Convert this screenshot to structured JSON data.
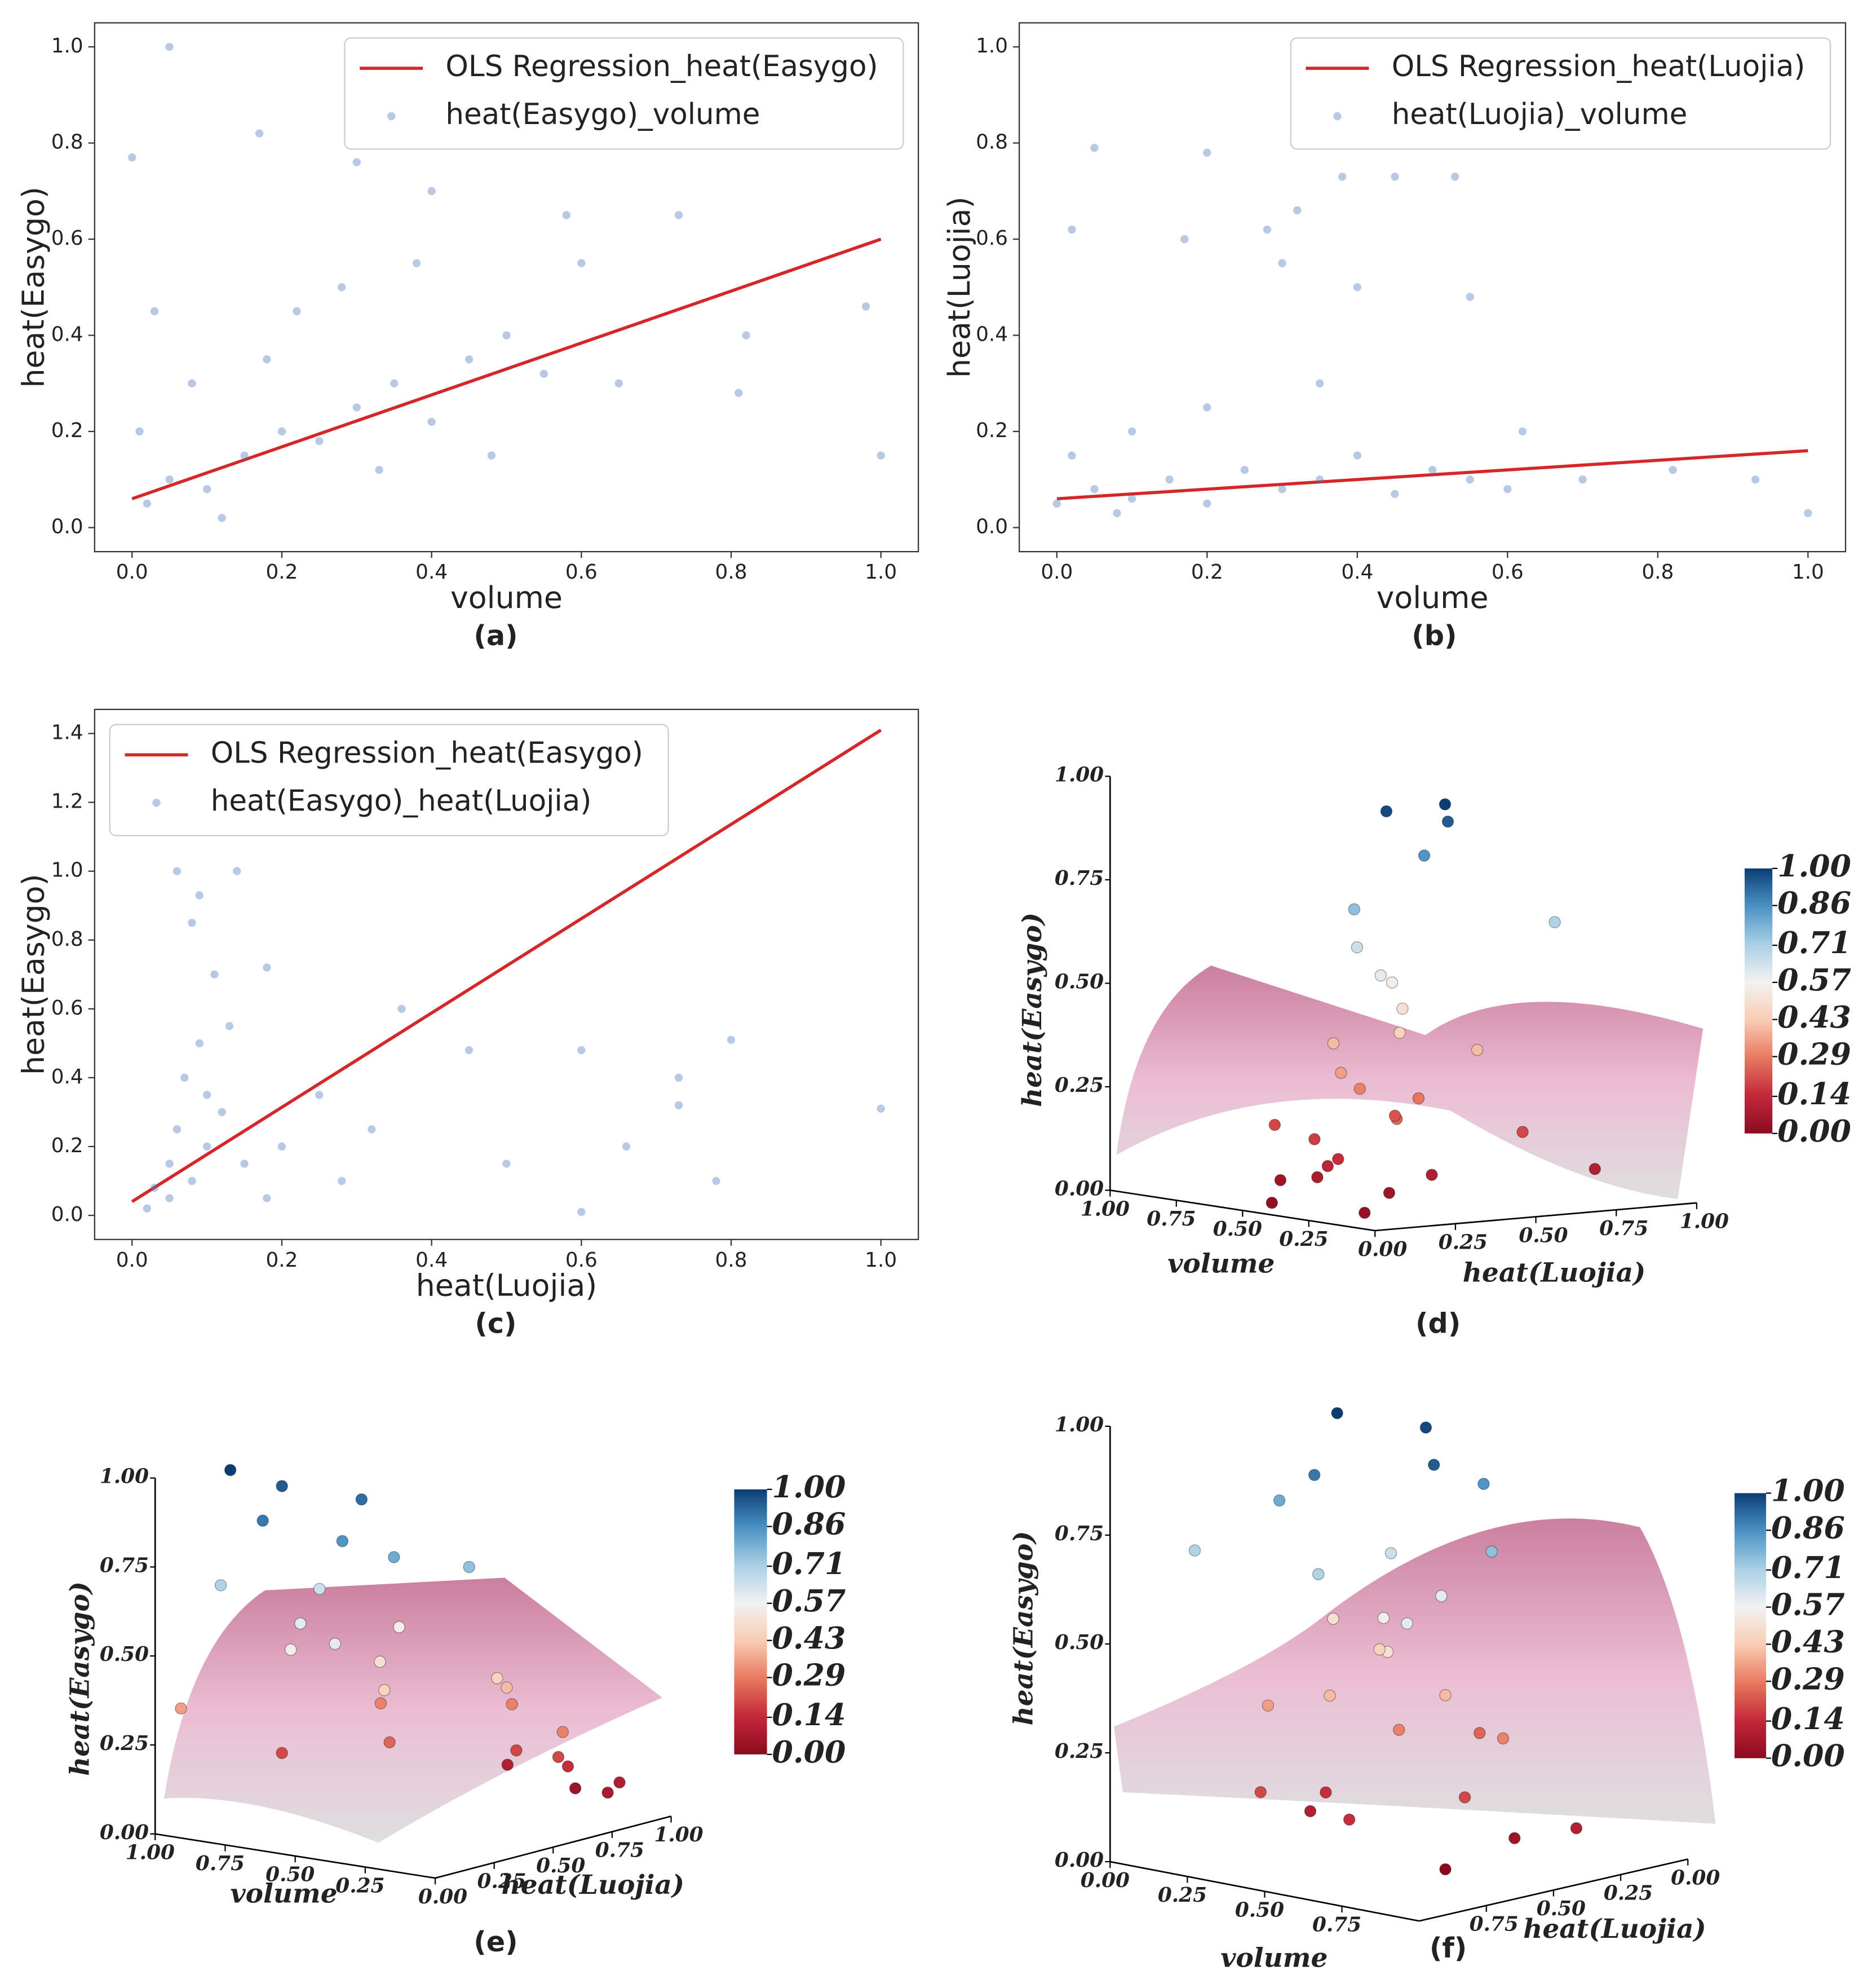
{
  "chart_data": [
    {
      "type": "scatter",
      "caption": "(a)",
      "xlabel": "volume",
      "ylabel": "heat(Easygo)",
      "legend": "upper right",
      "xlim": [
        -0.05,
        1.05
      ],
      "ylim": [
        -0.05,
        1.05
      ],
      "xticks": [
        {
          "value": 0,
          "label": "0.0"
        },
        {
          "value": 0.2,
          "label": "0.2"
        },
        {
          "value": 0.4,
          "label": "0.4"
        },
        {
          "value": 0.6,
          "label": "0.6"
        },
        {
          "value": 0.8,
          "label": "0.8"
        },
        {
          "value": 1,
          "label": "1.0"
        }
      ],
      "yticks": [
        {
          "value": 0,
          "label": "0.0"
        },
        {
          "value": 0.2,
          "label": "0.2"
        },
        {
          "value": 0.4,
          "label": "0.4"
        },
        {
          "value": 0.6,
          "label": "0.6"
        },
        {
          "value": 0.8,
          "label": "0.8"
        },
        {
          "value": 1,
          "label": "1.0"
        }
      ],
      "series": [
        {
          "name": "OLS Regression_heat(Easygo)",
          "kind": "line",
          "color": "#d62728",
          "x": [
            0,
            1
          ],
          "values": [
            0.06,
            0.6
          ]
        },
        {
          "name": "heat(Easygo)_volume",
          "kind": "scatter",
          "color": "#4a78bd",
          "x": [
            0.05,
            0.0,
            0.17,
            0.3,
            0.4,
            0.58,
            0.73,
            0.82,
            0.65,
            0.98,
            1.0,
            0.81,
            0.02,
            0.05,
            0.1,
            0.15,
            0.2,
            0.25,
            0.3,
            0.35,
            0.4,
            0.45,
            0.5,
            0.55,
            0.08,
            0.12,
            0.22,
            0.28,
            0.33,
            0.01,
            0.03,
            0.6,
            0.48,
            0.18,
            0.38
          ],
          "values": [
            1.0,
            0.77,
            0.82,
            0.76,
            0.7,
            0.65,
            0.65,
            0.4,
            0.3,
            0.46,
            0.15,
            0.28,
            0.05,
            0.1,
            0.08,
            0.15,
            0.2,
            0.18,
            0.25,
            0.3,
            0.22,
            0.35,
            0.4,
            0.32,
            0.3,
            0.02,
            0.45,
            0.5,
            0.12,
            0.2,
            0.45,
            0.55,
            0.15,
            0.35,
            0.55
          ]
        }
      ]
    },
    {
      "type": "scatter",
      "caption": "(b)",
      "xlabel": "volume",
      "ylabel": "heat(Luojia)",
      "legend": "upper right",
      "xlim": [
        -0.05,
        1.05
      ],
      "ylim": [
        -0.05,
        1.05
      ],
      "xticks": [
        {
          "value": 0,
          "label": "0.0"
        },
        {
          "value": 0.2,
          "label": "0.2"
        },
        {
          "value": 0.4,
          "label": "0.4"
        },
        {
          "value": 0.6,
          "label": "0.6"
        },
        {
          "value": 0.8,
          "label": "0.8"
        },
        {
          "value": 1,
          "label": "1.0"
        }
      ],
      "yticks": [
        {
          "value": 0,
          "label": "0.0"
        },
        {
          "value": 0.2,
          "label": "0.2"
        },
        {
          "value": 0.4,
          "label": "0.4"
        },
        {
          "value": 0.6,
          "label": "0.6"
        },
        {
          "value": 0.8,
          "label": "0.8"
        },
        {
          "value": 1,
          "label": "1.0"
        }
      ],
      "series": [
        {
          "name": "OLS Regression_heat(Luojia)",
          "kind": "line",
          "color": "#d62728",
          "x": [
            0,
            1
          ],
          "values": [
            0.06,
            0.16
          ]
        },
        {
          "name": "heat(Luojia)_volume",
          "kind": "scatter",
          "color": "#4a78bd",
          "x": [
            0.05,
            0.2,
            0.38,
            0.45,
            0.53,
            0.32,
            0.02,
            0.17,
            0.28,
            0.3,
            0.4,
            0.55,
            0.62,
            0.82,
            0.93,
            1.0,
            0.7,
            0.0,
            0.05,
            0.1,
            0.15,
            0.2,
            0.25,
            0.3,
            0.35,
            0.4,
            0.45,
            0.5,
            0.55,
            0.1,
            0.2,
            0.02,
            0.6,
            0.35,
            0.08
          ],
          "values": [
            0.79,
            0.78,
            0.73,
            0.73,
            0.73,
            0.66,
            0.62,
            0.6,
            0.62,
            0.55,
            0.5,
            0.48,
            0.2,
            0.12,
            0.1,
            0.03,
            0.1,
            0.05,
            0.08,
            0.06,
            0.1,
            0.05,
            0.12,
            0.08,
            0.1,
            0.15,
            0.07,
            0.12,
            0.1,
            0.2,
            0.25,
            0.15,
            0.08,
            0.3,
            0.03
          ]
        }
      ]
    },
    {
      "type": "scatter",
      "caption": "(c)",
      "xlabel": "heat(Luojia)",
      "ylabel": "heat(Easygo)",
      "legend": "upper left",
      "xlim": [
        -0.05,
        1.05
      ],
      "ylim": [
        -0.07,
        1.47
      ],
      "xticks": [
        {
          "value": 0,
          "label": "0.0"
        },
        {
          "value": 0.2,
          "label": "0.2"
        },
        {
          "value": 0.4,
          "label": "0.4"
        },
        {
          "value": 0.6,
          "label": "0.6"
        },
        {
          "value": 0.8,
          "label": "0.8"
        },
        {
          "value": 1,
          "label": "1.0"
        }
      ],
      "yticks": [
        {
          "value": 0,
          "label": "0.0"
        },
        {
          "value": 0.2,
          "label": "0.2"
        },
        {
          "value": 0.4,
          "label": "0.4"
        },
        {
          "value": 0.6,
          "label": "0.6"
        },
        {
          "value": 0.8,
          "label": "0.8"
        },
        {
          "value": 1,
          "label": "1.0"
        },
        {
          "value": 1.2,
          "label": "1.2"
        },
        {
          "value": 1.4,
          "label": "1.4"
        }
      ],
      "series": [
        {
          "name": "OLS Regression_heat(Easygo)",
          "kind": "line",
          "color": "#d62728",
          "x": [
            0,
            1
          ],
          "values": [
            0.04,
            1.41
          ]
        },
        {
          "name": "heat(Easygo)_heat(Luojia)",
          "kind": "scatter",
          "color": "#4a78bd",
          "x": [
            0.06,
            0.14,
            0.09,
            0.08,
            0.11,
            0.18,
            0.36,
            0.45,
            0.6,
            0.66,
            0.73,
            0.73,
            0.8,
            0.78,
            0.6,
            1.0,
            0.28,
            0.5,
            0.02,
            0.05,
            0.05,
            0.08,
            0.1,
            0.12,
            0.07,
            0.09,
            0.1,
            0.15,
            0.2,
            0.25,
            0.06,
            0.13,
            0.03,
            0.18,
            0.32
          ],
          "values": [
            1.0,
            1.0,
            0.93,
            0.85,
            0.7,
            0.72,
            0.6,
            0.48,
            0.48,
            0.2,
            0.4,
            0.32,
            0.51,
            0.1,
            0.01,
            0.31,
            0.1,
            0.15,
            0.02,
            0.05,
            0.15,
            0.1,
            0.2,
            0.3,
            0.4,
            0.5,
            0.35,
            0.15,
            0.2,
            0.35,
            0.25,
            0.55,
            0.08,
            0.05,
            0.25
          ]
        }
      ]
    },
    {
      "type": "scatter3d",
      "caption": "(d)",
      "xlabel": "volume",
      "ylabel": "heat(Luojia)",
      "zlabel": "heat(Easygo)",
      "xticks": [
        {
          "value": 0.25,
          "label": "0.25"
        },
        {
          "value": 0.5,
          "label": "0.50"
        },
        {
          "value": 0.75,
          "label": "0.75"
        },
        {
          "value": 1,
          "label": "1.00"
        }
      ],
      "yticks": [
        {
          "value": 0,
          "label": "0.00"
        },
        {
          "value": 0.25,
          "label": "0.25"
        },
        {
          "value": 0.5,
          "label": "0.50"
        },
        {
          "value": 0.75,
          "label": "0.75"
        },
        {
          "value": 1,
          "label": "1.00"
        }
      ],
      "zticks": [
        {
          "value": 0,
          "label": "0.00"
        },
        {
          "value": 0.25,
          "label": "0.25"
        },
        {
          "value": 0.5,
          "label": "0.50"
        },
        {
          "value": 0.75,
          "label": "0.75"
        },
        {
          "value": 1,
          "label": "1.00"
        }
      ],
      "colorbar_ticks": [
        {
          "value": 0,
          "label": "0.00"
        },
        {
          "value": 0.14,
          "label": "0.14"
        },
        {
          "value": 0.29,
          "label": "0.29"
        },
        {
          "value": 0.43,
          "label": "0.43"
        },
        {
          "value": 0.57,
          "label": "0.57"
        },
        {
          "value": 0.71,
          "label": "0.71"
        },
        {
          "value": 0.86,
          "label": "0.86"
        },
        {
          "value": 1,
          "label": "1.00"
        }
      ],
      "colormap": [
        "#8b0a1f",
        "#c4283a",
        "#e8795f",
        "#f9cdb4",
        "#f2f2f2",
        "#a9cfe5",
        "#4a92c4",
        "#0b3d75"
      ],
      "x": [
        0.1,
        0.2,
        0.15,
        0.3,
        0.05,
        0.2,
        0.25,
        0.1,
        0.3,
        0.2,
        0.15,
        0.4,
        0.1,
        0.25,
        0.3,
        0.2,
        0.1,
        0.35,
        0.5,
        0.2,
        0.3,
        0.15,
        0.4,
        0.25,
        0.1,
        0.6,
        0.05,
        0.02,
        0.45,
        0.35
      ],
      "y": [
        0.3,
        0.2,
        0.35,
        0.4,
        0.6,
        0.1,
        0.15,
        0.1,
        0.3,
        0.25,
        0.2,
        0.2,
        0.4,
        0.1,
        0.2,
        0.3,
        0.15,
        0.35,
        0.1,
        0.05,
        0.1,
        0.3,
        0.15,
        0.25,
        0.05,
        0.2,
        0.5,
        0.7,
        0.05,
        0.1
      ],
      "values": [
        1.0,
        0.98,
        0.95,
        0.85,
        0.7,
        0.75,
        0.65,
        0.6,
        0.55,
        0.5,
        0.45,
        0.4,
        0.4,
        0.35,
        0.3,
        0.28,
        0.25,
        0.22,
        0.2,
        0.15,
        0.12,
        0.1,
        0.08,
        0.05,
        0.03,
        0.05,
        0.2,
        0.1,
        0.02,
        0.18
      ]
    },
    {
      "type": "scatter3d",
      "caption": "(e)",
      "xlabel": "volume",
      "ylabel": "heat(Luojia)",
      "zlabel": "heat(Easygo)",
      "xticks": [
        {
          "value": 0.25,
          "label": "0.25"
        },
        {
          "value": 0.5,
          "label": "0.50"
        },
        {
          "value": 0.75,
          "label": "0.75"
        },
        {
          "value": 1,
          "label": "1.00"
        }
      ],
      "yticks": [
        {
          "value": 0,
          "label": "0.00"
        },
        {
          "value": 0.25,
          "label": "0.25"
        },
        {
          "value": 0.5,
          "label": "0.50"
        },
        {
          "value": 0.75,
          "label": "0.75"
        },
        {
          "value": 1,
          "label": "1.00"
        }
      ],
      "zticks": [
        {
          "value": 0,
          "label": "0.00"
        },
        {
          "value": 0.25,
          "label": "0.25"
        },
        {
          "value": 0.5,
          "label": "0.50"
        },
        {
          "value": 0.75,
          "label": "0.75"
        },
        {
          "value": 1,
          "label": "1.00"
        }
      ],
      "colorbar_ticks": [
        {
          "value": 0,
          "label": "0.00"
        },
        {
          "value": 0.14,
          "label": "0.14"
        },
        {
          "value": 0.29,
          "label": "0.29"
        },
        {
          "value": 0.43,
          "label": "0.43"
        },
        {
          "value": 0.57,
          "label": "0.57"
        },
        {
          "value": 0.71,
          "label": "0.71"
        },
        {
          "value": 0.86,
          "label": "0.86"
        },
        {
          "value": 1,
          "label": "1.00"
        }
      ],
      "colormap": [
        "#8b0a1f",
        "#c4283a",
        "#e8795f",
        "#f9cdb4",
        "#f2f2f2",
        "#a9cfe5",
        "#4a92c4",
        "#0b3d75"
      ],
      "x": [
        0.9,
        0.8,
        0.7,
        0.6,
        0.5,
        0.4,
        0.3,
        0.85,
        0.75,
        0.65,
        0.55,
        0.45,
        0.35,
        0.25,
        0.95,
        0.7,
        0.5,
        0.3,
        0.2,
        0.1,
        0.6,
        0.4,
        0.2,
        0.8,
        0.5,
        0.3,
        0.15,
        0.1,
        0.05,
        0.4
      ],
      "y": [
        0.2,
        0.3,
        0.1,
        0.4,
        0.2,
        0.3,
        0.5,
        0.1,
        0.4,
        0.2,
        0.5,
        0.3,
        0.2,
        0.6,
        0.05,
        0.6,
        0.4,
        0.7,
        0.8,
        0.9,
        0.1,
        0.8,
        0.5,
        0.3,
        0.9,
        0.95,
        0.7,
        0.85,
        0.6,
        0.05
      ],
      "values": [
        1.0,
        0.95,
        0.9,
        0.92,
        0.85,
        0.8,
        0.75,
        0.7,
        0.65,
        0.6,
        0.55,
        0.5,
        0.45,
        0.4,
        0.35,
        0.3,
        0.25,
        0.2,
        0.15,
        0.1,
        0.55,
        0.3,
        0.45,
        0.2,
        0.1,
        0.05,
        0.2,
        0.08,
        0.3,
        0.6
      ]
    },
    {
      "type": "scatter3d",
      "caption": "(f)",
      "xlabel": "volume",
      "ylabel": "heat(Luojia)",
      "zlabel": "heat(Easygo)",
      "xticks": [
        {
          "value": 0,
          "label": "0.00"
        },
        {
          "value": 0.25,
          "label": "0.25"
        },
        {
          "value": 0.5,
          "label": "0.50"
        },
        {
          "value": 0.75,
          "label": "0.75"
        }
      ],
      "yticks": [
        {
          "value": 0,
          "label": "0.00"
        },
        {
          "value": 0.25,
          "label": "0.25"
        },
        {
          "value": 0.5,
          "label": "0.50"
        },
        {
          "value": 0.75,
          "label": "0.75"
        }
      ],
      "zticks": [
        {
          "value": 0,
          "label": "0.00"
        },
        {
          "value": 0.25,
          "label": "0.25"
        },
        {
          "value": 0.5,
          "label": "0.50"
        },
        {
          "value": 0.75,
          "label": "0.75"
        },
        {
          "value": 1,
          "label": "1.00"
        }
      ],
      "colorbar_ticks": [
        {
          "value": 0,
          "label": "0.00"
        },
        {
          "value": 0.14,
          "label": "0.14"
        },
        {
          "value": 0.29,
          "label": "0.29"
        },
        {
          "value": 0.43,
          "label": "0.43"
        },
        {
          "value": 0.57,
          "label": "0.57"
        },
        {
          "value": 0.71,
          "label": "0.71"
        },
        {
          "value": 0.86,
          "label": "0.86"
        },
        {
          "value": 1,
          "label": "1.00"
        }
      ],
      "colormap": [
        "#8b0a1f",
        "#c4283a",
        "#e8795f",
        "#f9cdb4",
        "#f2f2f2",
        "#a9cfe5",
        "#4a92c4",
        "#0b3d75"
      ],
      "x": [
        0.3,
        0.5,
        0.7,
        0.4,
        0.6,
        0.2,
        0.8,
        0.5,
        0.3,
        0.7,
        0.45,
        0.55,
        0.35,
        0.65,
        0.25,
        0.75,
        0.5,
        0.4,
        0.6,
        0.3,
        0.7,
        0.5,
        0.2,
        0.8,
        0.45,
        0.55,
        0.1,
        0.9,
        0.35,
        0.65
      ],
      "y": [
        0.5,
        0.4,
        0.6,
        0.7,
        0.3,
        0.6,
        0.5,
        0.8,
        0.3,
        0.7,
        0.5,
        0.6,
        0.4,
        0.5,
        0.7,
        0.4,
        0.2,
        0.9,
        0.8,
        0.6,
        0.3,
        0.5,
        0.4,
        0.6,
        0.7,
        0.4,
        0.8,
        0.3,
        0.6,
        0.5
      ],
      "values": [
        1.0,
        0.98,
        0.95,
        0.9,
        0.85,
        0.8,
        0.75,
        0.7,
        0.65,
        0.6,
        0.55,
        0.5,
        0.45,
        0.4,
        0.35,
        0.3,
        0.25,
        0.2,
        0.15,
        0.1,
        0.05,
        0.3,
        0.5,
        0.2,
        0.4,
        0.6,
        0.7,
        0.1,
        0.15,
        0.0
      ]
    }
  ]
}
